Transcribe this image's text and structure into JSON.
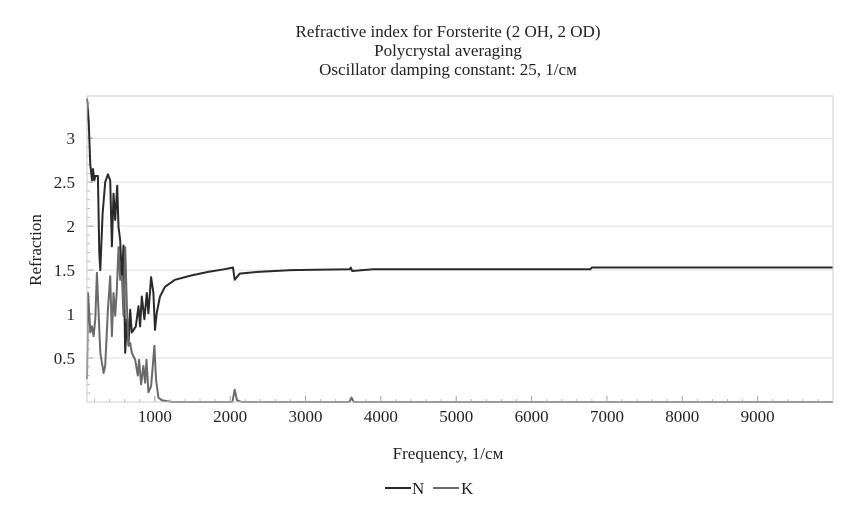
{
  "chart_data": {
    "type": "line",
    "title": [
      "Refractive index for Forsterite (2 OH, 2 OD)",
      "Polycrystal averaging",
      "Oscillator damping constant: 25, 1/см"
    ],
    "xlabel": "Frequency, 1/см",
    "ylabel": "Refraction",
    "xlim": [
      100,
      10000
    ],
    "ylim": [
      0,
      3.48
    ],
    "xticks": [
      1000,
      2000,
      3000,
      4000,
      5000,
      6000,
      7000,
      8000,
      9000
    ],
    "yticks": [
      0.5,
      1,
      1.5,
      2,
      2.5,
      3
    ],
    "grid": "horizontal",
    "legend_position": "bottom-center",
    "series": [
      {
        "name": "N",
        "color": "#2a2a2a",
        "x": [
          100,
          122,
          144,
          166,
          180,
          197,
          210,
          245,
          263,
          276,
          307,
          342,
          377,
          408,
          430,
          452,
          474,
          501,
          518,
          540,
          563,
          585,
          607,
          629,
          651,
          673,
          695,
          717,
          748,
          783,
          805,
          827,
          862,
          893,
          915,
          950,
          981,
          1003,
          1025,
          1069,
          1135,
          1267,
          1488,
          1708,
          1928,
          2038,
          2060,
          2126,
          2369,
          2809,
          3590,
          3600,
          3620,
          3900,
          6780,
          6800,
          10000
        ],
        "y": [
          3.45,
          3.19,
          2.7,
          2.52,
          2.65,
          2.52,
          2.57,
          2.57,
          1.69,
          1.5,
          2.14,
          2.5,
          2.59,
          2.52,
          1.77,
          2.37,
          2.07,
          2.46,
          1.99,
          1.84,
          1.39,
          1.78,
          0.56,
          0.94,
          0.64,
          1.05,
          0.79,
          0.82,
          0.86,
          1.09,
          0.86,
          1.2,
          0.94,
          1.24,
          1.01,
          1.42,
          1.24,
          0.82,
          1.01,
          1.2,
          1.31,
          1.39,
          1.44,
          1.48,
          1.51,
          1.53,
          1.39,
          1.46,
          1.48,
          1.5,
          1.51,
          1.53,
          1.49,
          1.51,
          1.51,
          1.53,
          1.53
        ]
      },
      {
        "name": "K",
        "color": "#6a6a6a",
        "x": [
          100,
          113,
          131,
          144,
          166,
          188,
          210,
          232,
          254,
          276,
          320,
          342,
          377,
          408,
          430,
          452,
          474,
          496,
          518,
          540,
          563,
          585,
          607,
          629,
          651,
          673,
          695,
          739,
          774,
          792,
          818,
          849,
          871,
          889,
          915,
          950,
          994,
          1016,
          1047,
          1091,
          1223,
          2030,
          2060,
          2090,
          2150,
          3580,
          3610,
          3640,
          10000
        ],
        "y": [
          0.26,
          1.24,
          1.01,
          0.79,
          0.86,
          0.75,
          0.94,
          1.47,
          1.01,
          0.56,
          0.33,
          0.41,
          1.05,
          1.43,
          0.75,
          1.24,
          0.98,
          1.27,
          1.76,
          1.39,
          1.43,
          0.98,
          1.76,
          1.09,
          0.64,
          0.67,
          0.56,
          0.48,
          0.3,
          0.48,
          0.2,
          0.41,
          0.22,
          0.48,
          0.11,
          0.18,
          0.64,
          0.26,
          0.05,
          0.02,
          0.0,
          0.0,
          0.14,
          0.02,
          0.0,
          0.0,
          0.05,
          0.0,
          0.0
        ]
      }
    ]
  }
}
